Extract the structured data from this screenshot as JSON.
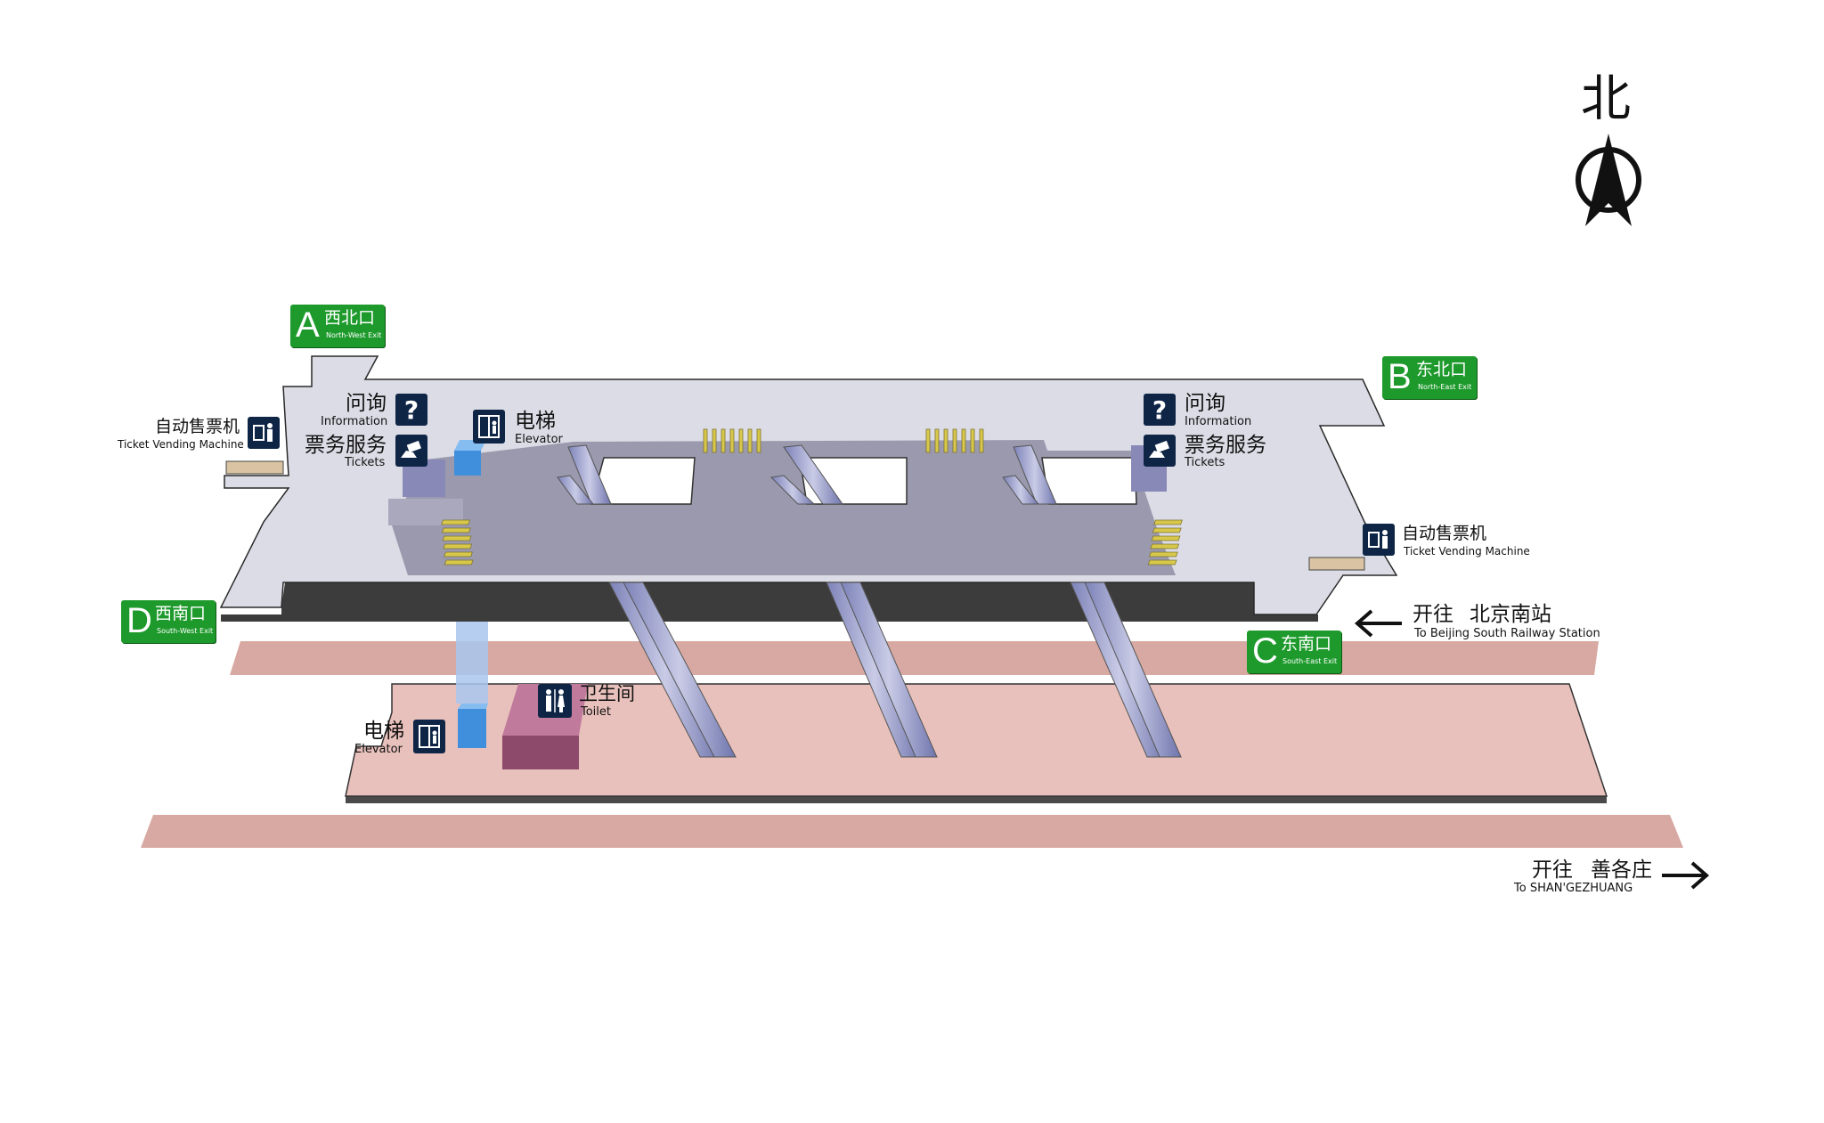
{
  "compass": {
    "north_label": "北",
    "icon": "north-arrow-icon"
  },
  "exits": {
    "a": {
      "letter": "A",
      "zh": "西北口",
      "en": "North-West Exit"
    },
    "b": {
      "letter": "B",
      "zh": "东北口",
      "en": "North-East Exit"
    },
    "c": {
      "letter": "C",
      "zh": "东南口",
      "en": "South-East Exit"
    },
    "d": {
      "letter": "D",
      "zh": "西南口",
      "en": "South-West Exit"
    }
  },
  "facilities": {
    "info_west": {
      "zh": "问询",
      "en": "Information",
      "icon": "question-icon"
    },
    "tickets_west": {
      "zh": "票务服务",
      "en": "Tickets",
      "icon": "ticket-hand-icon"
    },
    "tvm_west": {
      "zh": "自动售票机",
      "en": "Ticket Vending Machine",
      "icon": "ticket-machine-icon"
    },
    "elevator_concourse": {
      "zh": "电梯",
      "en": "Elevator",
      "icon": "elevator-icon"
    },
    "info_east": {
      "zh": "问询",
      "en": "Information",
      "icon": "question-icon"
    },
    "tickets_east": {
      "zh": "票务服务",
      "en": "Tickets",
      "icon": "ticket-hand-icon"
    },
    "tvm_east": {
      "zh": "自动售票机",
      "en": "Ticket Vending Machine",
      "icon": "ticket-machine-icon"
    },
    "elevator_platform": {
      "zh": "电梯",
      "en": "Elevator",
      "icon": "elevator-icon"
    },
    "toilet": {
      "zh": "卫生间",
      "en": "Toilet",
      "icon": "toilet-icon"
    }
  },
  "directions": {
    "west": {
      "zh_prefix": "开往",
      "zh_dest": "北京南站",
      "en": "To Beijing South Railway Station",
      "icon": "arrow-left-icon"
    },
    "east": {
      "zh_prefix": "开往",
      "zh_dest": "善各庄",
      "en": "To SHAN'GEZHUANG",
      "icon": "arrow-right-icon"
    }
  },
  "colors": {
    "exit_green": "#1e9a2c",
    "concourse": "#dcdce6",
    "paid_area": "#9a99ad",
    "platform": "#e7bdb8",
    "track": "#d8a9a2",
    "icon_navy": "#0e2546",
    "elevator_blue": "#3f8fdc",
    "toilet_block": "#a85e82",
    "gate_yellow": "#d8c84a"
  }
}
